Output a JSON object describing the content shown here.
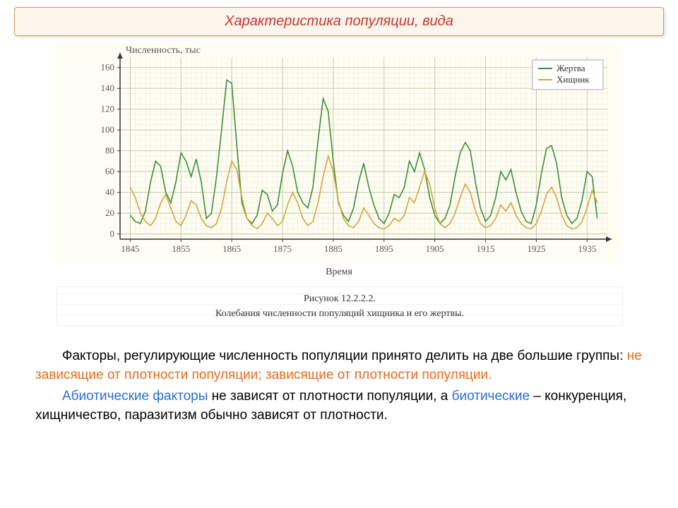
{
  "title": "Характеристика популяции, вида",
  "chart": {
    "type": "line",
    "y_axis_title": "Численность, тыс",
    "x_axis_title": "Время",
    "background_color": "#fffef5",
    "grid_major_color": "#c8c8a8",
    "grid_minor_color": "#e8e8cc",
    "axis_color": "#333333",
    "xlim": [
      1843,
      1939
    ],
    "ylim": [
      -5,
      170
    ],
    "ytick_step": 20,
    "ytick_min": 0,
    "ytick_max": 160,
    "xtick_step": 10,
    "xtick_min": 1845,
    "xtick_max": 1935,
    "line_width": 1.6,
    "legend": {
      "position": "top-right",
      "border_color": "#aaaaaa",
      "bg": "#ffffff",
      "items": [
        {
          "label": "Жертва",
          "color": "#3a8f3a"
        },
        {
          "label": "Хищник",
          "color": "#d6a43c"
        }
      ]
    },
    "series": [
      {
        "name": "Жертва",
        "color": "#3a8f3a",
        "points": [
          [
            1845,
            18
          ],
          [
            1846,
            12
          ],
          [
            1847,
            10
          ],
          [
            1848,
            22
          ],
          [
            1849,
            50
          ],
          [
            1850,
            70
          ],
          [
            1851,
            65
          ],
          [
            1852,
            40
          ],
          [
            1853,
            30
          ],
          [
            1854,
            50
          ],
          [
            1855,
            78
          ],
          [
            1856,
            70
          ],
          [
            1857,
            55
          ],
          [
            1858,
            72
          ],
          [
            1859,
            50
          ],
          [
            1860,
            15
          ],
          [
            1861,
            20
          ],
          [
            1862,
            55
          ],
          [
            1863,
            100
          ],
          [
            1864,
            148
          ],
          [
            1865,
            145
          ],
          [
            1866,
            85
          ],
          [
            1867,
            30
          ],
          [
            1868,
            15
          ],
          [
            1869,
            10
          ],
          [
            1870,
            18
          ],
          [
            1871,
            42
          ],
          [
            1872,
            38
          ],
          [
            1873,
            22
          ],
          [
            1874,
            28
          ],
          [
            1875,
            58
          ],
          [
            1876,
            80
          ],
          [
            1877,
            65
          ],
          [
            1878,
            40
          ],
          [
            1879,
            30
          ],
          [
            1880,
            25
          ],
          [
            1881,
            45
          ],
          [
            1882,
            90
          ],
          [
            1883,
            130
          ],
          [
            1884,
            118
          ],
          [
            1885,
            70
          ],
          [
            1886,
            30
          ],
          [
            1887,
            18
          ],
          [
            1888,
            12
          ],
          [
            1889,
            25
          ],
          [
            1890,
            50
          ],
          [
            1891,
            68
          ],
          [
            1892,
            45
          ],
          [
            1893,
            28
          ],
          [
            1894,
            15
          ],
          [
            1895,
            10
          ],
          [
            1896,
            20
          ],
          [
            1897,
            38
          ],
          [
            1898,
            35
          ],
          [
            1899,
            45
          ],
          [
            1900,
            70
          ],
          [
            1901,
            60
          ],
          [
            1902,
            78
          ],
          [
            1903,
            62
          ],
          [
            1904,
            35
          ],
          [
            1905,
            18
          ],
          [
            1906,
            10
          ],
          [
            1907,
            15
          ],
          [
            1908,
            28
          ],
          [
            1909,
            55
          ],
          [
            1910,
            78
          ],
          [
            1911,
            88
          ],
          [
            1912,
            80
          ],
          [
            1913,
            50
          ],
          [
            1914,
            25
          ],
          [
            1915,
            12
          ],
          [
            1916,
            18
          ],
          [
            1917,
            35
          ],
          [
            1918,
            60
          ],
          [
            1919,
            52
          ],
          [
            1920,
            62
          ],
          [
            1921,
            40
          ],
          [
            1922,
            22
          ],
          [
            1923,
            12
          ],
          [
            1924,
            10
          ],
          [
            1925,
            28
          ],
          [
            1926,
            58
          ],
          [
            1927,
            82
          ],
          [
            1928,
            85
          ],
          [
            1929,
            68
          ],
          [
            1930,
            35
          ],
          [
            1931,
            18
          ],
          [
            1932,
            10
          ],
          [
            1933,
            15
          ],
          [
            1934,
            32
          ],
          [
            1935,
            60
          ],
          [
            1936,
            55
          ],
          [
            1937,
            15
          ]
        ]
      },
      {
        "name": "Хищник",
        "color": "#d6a43c",
        "points": [
          [
            1845,
            45
          ],
          [
            1846,
            35
          ],
          [
            1847,
            20
          ],
          [
            1848,
            12
          ],
          [
            1849,
            8
          ],
          [
            1850,
            15
          ],
          [
            1851,
            30
          ],
          [
            1852,
            38
          ],
          [
            1853,
            25
          ],
          [
            1854,
            12
          ],
          [
            1855,
            8
          ],
          [
            1856,
            18
          ],
          [
            1857,
            32
          ],
          [
            1858,
            28
          ],
          [
            1859,
            15
          ],
          [
            1860,
            8
          ],
          [
            1861,
            6
          ],
          [
            1862,
            10
          ],
          [
            1863,
            25
          ],
          [
            1864,
            50
          ],
          [
            1865,
            70
          ],
          [
            1866,
            62
          ],
          [
            1867,
            35
          ],
          [
            1868,
            15
          ],
          [
            1869,
            8
          ],
          [
            1870,
            5
          ],
          [
            1871,
            10
          ],
          [
            1872,
            20
          ],
          [
            1873,
            15
          ],
          [
            1874,
            8
          ],
          [
            1875,
            12
          ],
          [
            1876,
            28
          ],
          [
            1877,
            40
          ],
          [
            1878,
            30
          ],
          [
            1879,
            15
          ],
          [
            1880,
            8
          ],
          [
            1881,
            12
          ],
          [
            1882,
            30
          ],
          [
            1883,
            55
          ],
          [
            1884,
            75
          ],
          [
            1885,
            60
          ],
          [
            1886,
            32
          ],
          [
            1887,
            15
          ],
          [
            1888,
            8
          ],
          [
            1889,
            6
          ],
          [
            1890,
            12
          ],
          [
            1891,
            25
          ],
          [
            1892,
            18
          ],
          [
            1893,
            10
          ],
          [
            1894,
            6
          ],
          [
            1895,
            5
          ],
          [
            1896,
            8
          ],
          [
            1897,
            15
          ],
          [
            1898,
            12
          ],
          [
            1899,
            18
          ],
          [
            1900,
            35
          ],
          [
            1901,
            30
          ],
          [
            1902,
            45
          ],
          [
            1903,
            60
          ],
          [
            1904,
            48
          ],
          [
            1905,
            25
          ],
          [
            1906,
            10
          ],
          [
            1907,
            6
          ],
          [
            1908,
            10
          ],
          [
            1909,
            20
          ],
          [
            1910,
            35
          ],
          [
            1911,
            48
          ],
          [
            1912,
            40
          ],
          [
            1913,
            22
          ],
          [
            1914,
            10
          ],
          [
            1915,
            6
          ],
          [
            1916,
            8
          ],
          [
            1917,
            15
          ],
          [
            1918,
            28
          ],
          [
            1919,
            22
          ],
          [
            1920,
            30
          ],
          [
            1921,
            18
          ],
          [
            1922,
            10
          ],
          [
            1923,
            6
          ],
          [
            1924,
            5
          ],
          [
            1925,
            10
          ],
          [
            1926,
            22
          ],
          [
            1927,
            38
          ],
          [
            1928,
            45
          ],
          [
            1929,
            35
          ],
          [
            1930,
            18
          ],
          [
            1931,
            8
          ],
          [
            1932,
            5
          ],
          [
            1933,
            6
          ],
          [
            1934,
            12
          ],
          [
            1935,
            25
          ],
          [
            1936,
            42
          ],
          [
            1937,
            30
          ]
        ]
      }
    ]
  },
  "caption": {
    "line1": "Рисунок 12.2.2.2.",
    "line2": "Колебания численности популяций хищника и его жертвы."
  },
  "body": {
    "p1_a": "Факторы, регулирующие численность популяции принято делить на две большие группы: ",
    "p1_b": "не зависящие от плотности популяции; зависящие от плотности популяции.",
    "p2_a": "Абиотические факторы",
    "p2_b": " не зависят от плотности популяции, а ",
    "p2_c": "биотические",
    "p2_d": " – конкуренция, хищничество, паразитизм обычно зависят от плотности."
  }
}
